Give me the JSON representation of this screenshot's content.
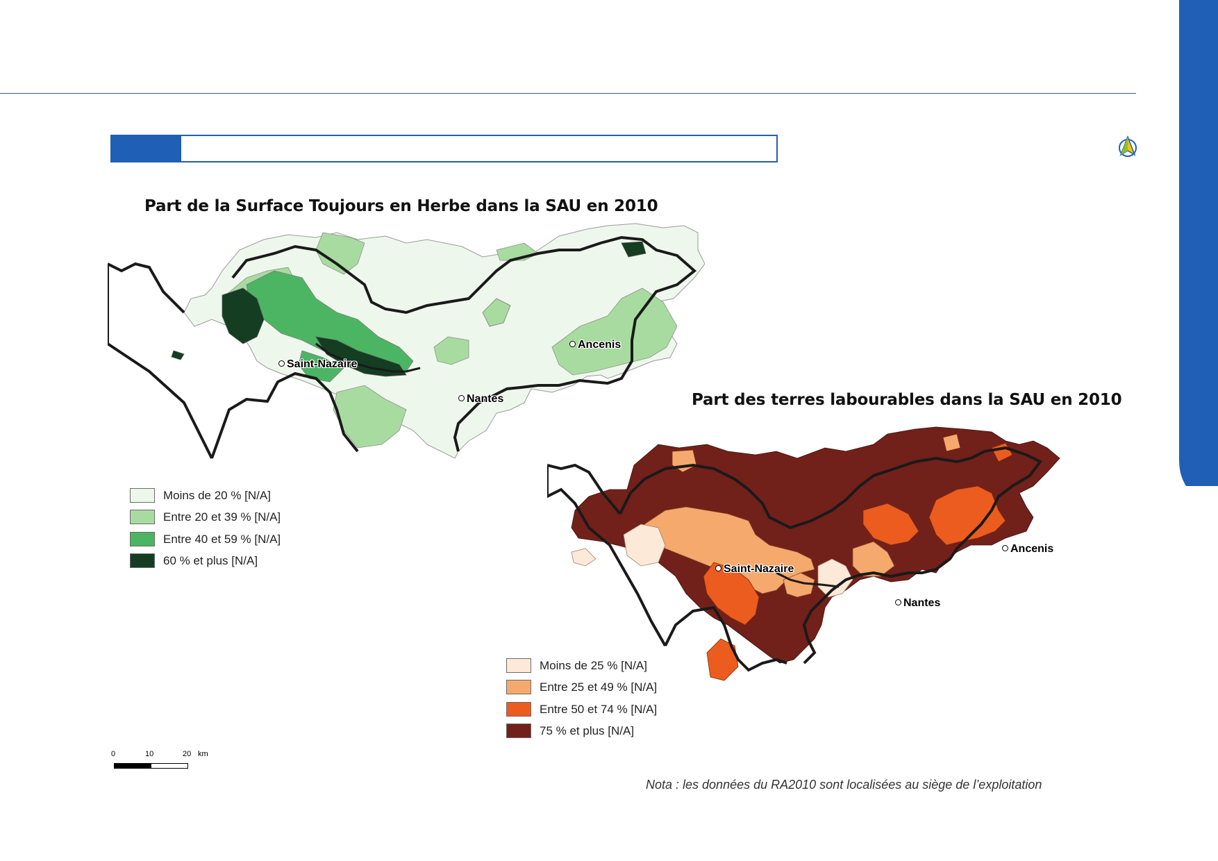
{
  "colors": {
    "accent": "#1f5fb5",
    "green": [
      "#eef7ec",
      "#a8dba0",
      "#4cb563",
      "#143d22"
    ],
    "orange": [
      "#fde9d8",
      "#f5a96c",
      "#ec5c1e",
      "#72201a"
    ],
    "boundary": "#1a1a1a"
  },
  "map_left": {
    "title": "Part de la Surface Toujours en Herbe dans la SAU en 2010",
    "cities": [
      {
        "name": "Saint-Nazaire"
      },
      {
        "name": "Ancenis"
      },
      {
        "name": "Nantes"
      }
    ],
    "legend": [
      {
        "label": "Moins de 20 % [N/A]"
      },
      {
        "label": "Entre 20 et 39 % [N/A]"
      },
      {
        "label": "Entre 40 et 59 % [N/A]"
      },
      {
        "label": "60 % et plus [N/A]"
      }
    ]
  },
  "map_right": {
    "title": "Part des terres labourables dans la SAU en 2010",
    "cities": [
      {
        "name": "Saint-Nazaire"
      },
      {
        "name": "Ancenis"
      },
      {
        "name": "Nantes"
      }
    ],
    "legend": [
      {
        "label": "Moins de 25 % [N/A]"
      },
      {
        "label": "Entre 25 et 49 % [N/A]"
      },
      {
        "label": "Entre 50 et 74 % [N/A]"
      },
      {
        "label": "75 % et plus [N/A]"
      }
    ]
  },
  "scale": {
    "labels": [
      "0",
      "10",
      "20"
    ],
    "unit": "km"
  },
  "nota": "Nota : les données du RA2010 sont localisées au siège de l’exploitation"
}
